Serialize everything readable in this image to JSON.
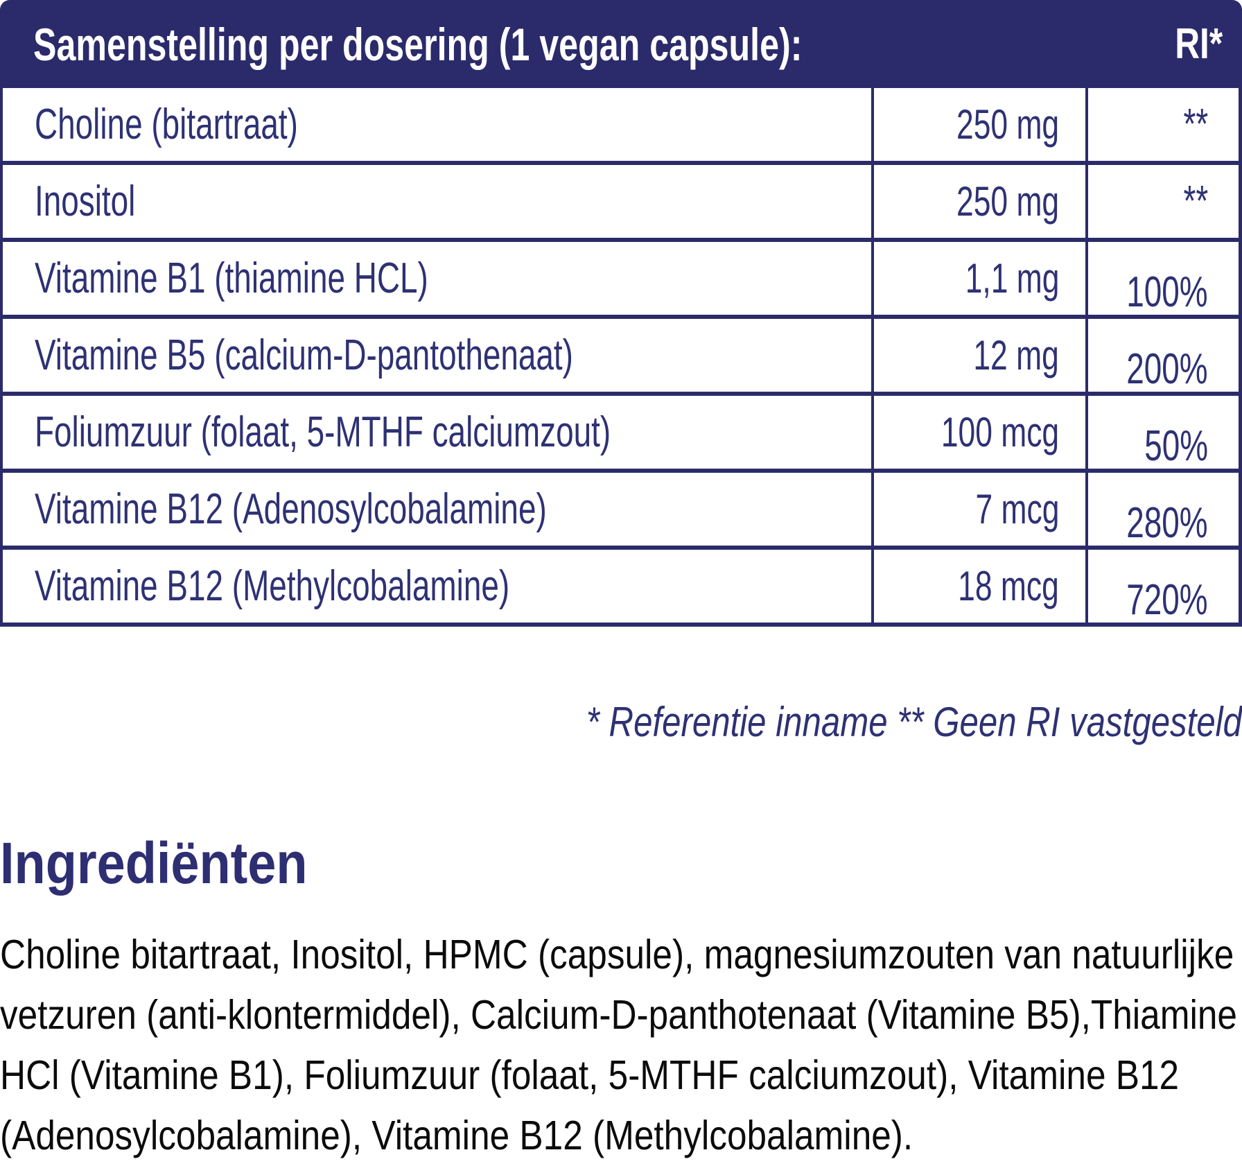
{
  "colors": {
    "navy_band": "#2b2b6b",
    "navy_text": "#2e3173",
    "body_text": "#0b0b0b",
    "background": "#ffffff"
  },
  "table": {
    "header": {
      "title": "Samenstelling per dosering (1 vegan capsule):",
      "ri_label": "RI*"
    },
    "rows": [
      {
        "name": "Choline (bitartraat)",
        "amount": "250 mg",
        "ri": "**"
      },
      {
        "name": "Inositol",
        "amount": "250 mg",
        "ri": "**"
      },
      {
        "name": "Vitamine B1 (thiamine HCL)",
        "amount": "1,1 mg",
        "ri": "100%"
      },
      {
        "name": "Vitamine B5 (calcium-D-pantothenaat)",
        "amount": "12 mg",
        "ri": "200%"
      },
      {
        "name": "Foliumzuur (folaat, 5-MTHF calciumzout)",
        "amount": "100 mcg",
        "ri": "50%"
      },
      {
        "name": "Vitamine B12 (Adenosylcobalamine)",
        "amount": "7 mcg",
        "ri": "280%"
      },
      {
        "name": "Vitamine B12 (Methylcobalamine)",
        "amount": "18 mcg",
        "ri": "720%"
      }
    ],
    "footnote": "* Referentie inname  ** Geen RI vastgesteld"
  },
  "ingredients": {
    "heading": "Ingrediënten",
    "body": "Choline bitartraat, Inositol, HPMC (capsule), magnesiumzouten van natuurlijke vetzuren (anti-klontermiddel), Calcium-D-panthotenaat (Vitamine B5),Thiamine HCl (Vitamine B1), Foliumzuur (folaat, 5-MTHF calciumzout), Vitamine B12 (Adenosylcobalamine), Vitamine B12 (Methylcobalamine)."
  }
}
